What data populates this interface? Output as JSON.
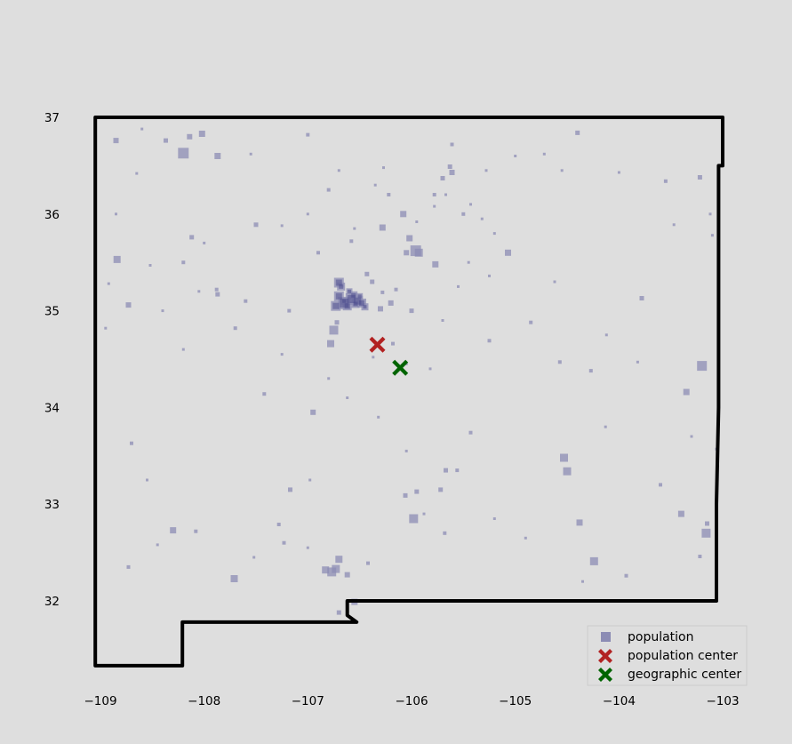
{
  "chart_data": {
    "type": "scatter",
    "title": "",
    "xlabel": "",
    "ylabel": "",
    "xlim": [
      -109.2,
      -102.8
    ],
    "ylim": [
      31.2,
      37.2
    ],
    "xticks": [
      -109,
      -108,
      -107,
      -106,
      -105,
      -104,
      -103
    ],
    "xtick_labels": [
      "−109",
      "−108",
      "−107",
      "−106",
      "−105",
      "−104",
      "−103"
    ],
    "yticks": [
      32,
      33,
      34,
      35,
      36,
      37
    ],
    "ytick_labels": [
      "32",
      "33",
      "34",
      "35",
      "36",
      "37"
    ],
    "grid": false,
    "legend_position": "lower-right",
    "colors": {
      "population": "#8c8cb4",
      "population_dense": "#4a4a8c",
      "population_center": "#b22222",
      "geographic_center": "#006400",
      "boundary": "#000000"
    },
    "boundary": [
      [
        -109.05,
        37.0
      ],
      [
        -107.0,
        37.0
      ],
      [
        -105.0,
        37.0
      ],
      [
        -103.0,
        37.0
      ],
      [
        -103.0,
        36.5
      ],
      [
        -103.04,
        36.5
      ],
      [
        -103.04,
        34.0
      ],
      [
        -103.06,
        33.0
      ],
      [
        -103.06,
        32.0
      ],
      [
        -106.62,
        32.0
      ],
      [
        -106.62,
        31.85
      ],
      [
        -106.53,
        31.78
      ],
      [
        -108.21,
        31.78
      ],
      [
        -108.21,
        31.33
      ],
      [
        -109.05,
        31.33
      ],
      [
        -109.05,
        37.0
      ]
    ],
    "series": [
      {
        "name": "population",
        "marker": "square",
        "points": [
          [
            -106.65,
            35.08,
            14
          ],
          [
            -106.58,
            35.12,
            13
          ],
          [
            -106.52,
            35.1,
            12
          ],
          [
            -106.7,
            35.15,
            11
          ],
          [
            -106.62,
            35.05,
            10
          ],
          [
            -106.56,
            35.16,
            9
          ],
          [
            -106.48,
            35.08,
            10
          ],
          [
            -106.68,
            35.25,
            9
          ],
          [
            -106.73,
            35.05,
            11
          ],
          [
            -106.6,
            35.2,
            7
          ],
          [
            -106.5,
            35.15,
            7
          ],
          [
            -106.45,
            35.04,
            8
          ],
          [
            -106.7,
            35.29,
            11
          ],
          [
            -106.65,
            35.1,
            8
          ],
          [
            -106.54,
            35.07,
            9
          ],
          [
            -105.96,
            35.62,
            12
          ],
          [
            -105.93,
            35.6,
            9
          ],
          [
            -106.02,
            35.75,
            7
          ],
          [
            -106.05,
            35.6,
            6
          ],
          [
            -106.08,
            36.0,
            7
          ],
          [
            -106.28,
            35.86,
            7
          ],
          [
            -106.43,
            35.38,
            5
          ],
          [
            -106.38,
            35.3,
            5
          ],
          [
            -106.3,
            35.02,
            6
          ],
          [
            -106.2,
            35.08,
            6
          ],
          [
            -106.0,
            35.0,
            5
          ],
          [
            -106.28,
            35.19,
            4
          ],
          [
            -105.77,
            35.48,
            7
          ],
          [
            -105.07,
            35.6,
            7
          ],
          [
            -106.78,
            34.66,
            8
          ],
          [
            -106.75,
            34.8,
            10
          ],
          [
            -106.72,
            34.88,
            5
          ],
          [
            -106.95,
            33.95,
            6
          ],
          [
            -108.2,
            36.63,
            12
          ],
          [
            -107.87,
            36.6,
            7
          ],
          [
            -108.02,
            36.83,
            7
          ],
          [
            -108.14,
            36.8,
            6
          ],
          [
            -108.85,
            36.76,
            6
          ],
          [
            -108.37,
            36.76,
            5
          ],
          [
            -108.84,
            35.53,
            8
          ],
          [
            -108.73,
            35.06,
            6
          ],
          [
            -107.87,
            35.17,
            5
          ],
          [
            -108.12,
            35.76,
            5
          ],
          [
            -107.5,
            35.89,
            5
          ],
          [
            -107.88,
            35.22,
            4
          ],
          [
            -107.18,
            35.0,
            4
          ],
          [
            -105.61,
            36.43,
            6
          ],
          [
            -105.7,
            36.37,
            5
          ],
          [
            -105.63,
            36.49,
            5
          ],
          [
            -105.61,
            36.72,
            4
          ],
          [
            -104.53,
            33.48,
            9
          ],
          [
            -104.5,
            33.34,
            9
          ],
          [
            -104.38,
            32.81,
            7
          ],
          [
            -104.24,
            32.41,
            9
          ],
          [
            -103.2,
            34.43,
            11
          ],
          [
            -103.35,
            34.16,
            7
          ],
          [
            -103.16,
            32.7,
            10
          ],
          [
            -103.4,
            32.9,
            7
          ],
          [
            -103.15,
            32.8,
            5
          ],
          [
            -103.22,
            32.46,
            4
          ],
          [
            -105.98,
            32.85,
            10
          ],
          [
            -105.95,
            33.13,
            5
          ],
          [
            -106.06,
            33.09,
            5
          ],
          [
            -105.67,
            33.35,
            5
          ],
          [
            -105.72,
            33.15,
            5
          ],
          [
            -105.56,
            33.35,
            4
          ],
          [
            -106.77,
            32.3,
            10
          ],
          [
            -106.73,
            32.33,
            9
          ],
          [
            -106.83,
            32.32,
            8
          ],
          [
            -106.7,
            32.43,
            8
          ],
          [
            -106.62,
            32.27,
            6
          ],
          [
            -106.55,
            31.99,
            7
          ],
          [
            -106.7,
            31.88,
            5
          ],
          [
            -107.71,
            32.23,
            8
          ],
          [
            -108.3,
            32.73,
            7
          ],
          [
            -108.73,
            32.35,
            4
          ],
          [
            -107.17,
            33.15,
            5
          ],
          [
            -107.23,
            32.6,
            4
          ],
          [
            -106.15,
            35.22,
            4
          ],
          [
            -103.55,
            36.34,
            4
          ],
          [
            -103.22,
            36.38,
            5
          ],
          [
            -104.4,
            36.84,
            5
          ],
          [
            -103.78,
            35.13,
            5
          ],
          [
            -104.85,
            34.88,
            4
          ],
          [
            -104.27,
            34.38,
            4
          ],
          [
            -104.57,
            34.47,
            4
          ],
          [
            -105.25,
            34.69,
            4
          ],
          [
            -105.43,
            33.74,
            4
          ],
          [
            -106.18,
            34.66,
            4
          ],
          [
            -105.82,
            34.4,
            3
          ],
          [
            -106.58,
            35.72,
            4
          ],
          [
            -106.8,
            36.25,
            4
          ],
          [
            -107.42,
            34.14,
            4
          ],
          [
            -108.2,
            34.6,
            3
          ],
          [
            -108.7,
            33.63,
            4
          ],
          [
            -107.28,
            32.79,
            4
          ],
          [
            -106.42,
            32.39,
            4
          ],
          [
            -105.2,
            32.85,
            3
          ],
          [
            -104.9,
            32.65,
            3
          ],
          [
            -104.35,
            32.2,
            3
          ],
          [
            -103.93,
            32.26,
            4
          ],
          [
            -103.6,
            33.2,
            4
          ],
          [
            -103.47,
            35.89,
            3
          ],
          [
            -104.0,
            36.43,
            3
          ],
          [
            -105.5,
            36.0,
            4
          ],
          [
            -105.78,
            36.2,
            4
          ],
          [
            -106.27,
            36.48,
            3
          ],
          [
            -107.0,
            36.82,
            4
          ],
          [
            -108.6,
            36.88,
            3
          ],
          [
            -108.92,
            35.28,
            3
          ],
          [
            -108.52,
            35.47,
            3
          ],
          [
            -108.4,
            35.0,
            3
          ],
          [
            -107.7,
            34.82,
            4
          ],
          [
            -106.37,
            34.52,
            3
          ],
          [
            -106.05,
            34.45,
            3
          ],
          [
            -105.25,
            35.36,
            3
          ],
          [
            -104.62,
            35.3,
            3
          ],
          [
            -104.12,
            34.75,
            3
          ],
          [
            -103.82,
            34.47,
            3
          ],
          [
            -103.06,
            33.57,
            3
          ],
          [
            -103.3,
            33.7,
            3
          ],
          [
            -105.0,
            36.6,
            3
          ],
          [
            -105.28,
            36.45,
            3
          ],
          [
            -104.72,
            36.62,
            3
          ],
          [
            -108.2,
            35.5,
            4
          ],
          [
            -108.05,
            35.2,
            3
          ],
          [
            -106.9,
            35.6,
            4
          ],
          [
            -106.55,
            35.85,
            3
          ],
          [
            -106.22,
            36.2,
            4
          ],
          [
            -106.35,
            36.3,
            3
          ],
          [
            -105.95,
            35.92,
            3
          ],
          [
            -105.78,
            36.08,
            3
          ],
          [
            -105.67,
            36.2,
            3
          ],
          [
            -105.43,
            36.1,
            3
          ],
          [
            -105.32,
            35.95,
            3
          ],
          [
            -105.2,
            35.8,
            3
          ],
          [
            -105.45,
            35.5,
            3
          ],
          [
            -105.55,
            35.25,
            3
          ],
          [
            -105.7,
            34.9,
            3
          ],
          [
            -106.32,
            33.9,
            3
          ],
          [
            -106.05,
            33.55,
            3
          ],
          [
            -105.88,
            32.9,
            3
          ],
          [
            -105.68,
            32.7,
            4
          ],
          [
            -104.13,
            33.8,
            3
          ],
          [
            -103.1,
            35.78,
            3
          ],
          [
            -103.12,
            36.0,
            3
          ],
          [
            -104.55,
            36.45,
            3
          ],
          [
            -108.85,
            36.0,
            3
          ],
          [
            -108.65,
            36.42,
            3
          ],
          [
            -107.55,
            36.62,
            3
          ],
          [
            -107.25,
            35.88,
            3
          ],
          [
            -107.6,
            35.1,
            4
          ],
          [
            -108.95,
            34.82,
            3
          ],
          [
            -108.55,
            33.25,
            3
          ],
          [
            -108.45,
            32.58,
            3
          ],
          [
            -108.08,
            32.72,
            4
          ],
          [
            -107.52,
            32.45,
            3
          ],
          [
            -107.0,
            32.55,
            3
          ],
          [
            -106.98,
            33.25,
            3
          ],
          [
            -106.62,
            34.1,
            3
          ],
          [
            -106.8,
            34.3,
            3
          ],
          [
            -107.25,
            34.55,
            3
          ],
          [
            -108.0,
            35.7,
            3
          ],
          [
            -107.0,
            36.0,
            3
          ],
          [
            -106.7,
            36.45,
            3
          ]
        ]
      }
    ],
    "markers": [
      {
        "name": "population center",
        "lon": -106.33,
        "lat": 34.65,
        "marker": "x",
        "color": "#b22222"
      },
      {
        "name": "geographic center",
        "lon": -106.11,
        "lat": 34.41,
        "marker": "x",
        "color": "#006400"
      }
    ],
    "legend": [
      "population",
      "population center",
      "geographic center"
    ]
  }
}
